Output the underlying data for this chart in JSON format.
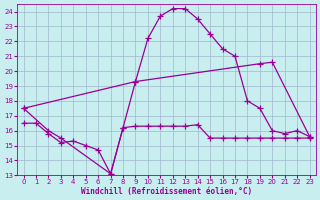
{
  "xlabel": "Windchill (Refroidissement éolien,°C)",
  "bg_color": "#c8eef0",
  "grid_color": "#a0b8cc",
  "line_color": "#990099",
  "xlim": [
    -0.5,
    23.5
  ],
  "ylim": [
    13,
    24.5
  ],
  "xticks": [
    0,
    1,
    2,
    3,
    4,
    5,
    6,
    7,
    8,
    9,
    10,
    11,
    12,
    13,
    14,
    15,
    16,
    17,
    18,
    19,
    20,
    21,
    22,
    23
  ],
  "yticks": [
    13,
    14,
    15,
    16,
    17,
    18,
    19,
    20,
    21,
    22,
    23,
    24
  ],
  "line1_x": [
    0,
    1,
    2,
    3,
    4,
    5,
    6,
    7,
    8,
    9,
    10,
    11,
    12,
    13,
    14,
    15,
    16,
    17,
    18,
    19,
    20,
    21,
    22,
    23
  ],
  "line1_y": [
    16.5,
    16.5,
    15.8,
    15.2,
    15.3,
    15.0,
    14.7,
    13.1,
    16.2,
    16.3,
    16.3,
    16.3,
    16.3,
    16.3,
    16.4,
    15.5,
    15.5,
    15.5,
    15.5,
    15.5,
    15.5,
    15.5,
    15.5,
    15.5
  ],
  "line2_x": [
    0,
    2,
    3,
    7,
    8,
    9,
    19,
    20,
    23
  ],
  "line2_y": [
    17.5,
    16.0,
    15.5,
    13.1,
    16.2,
    19.3,
    20.5,
    20.6,
    15.6
  ],
  "line3_x": [
    0,
    9,
    10,
    11,
    12,
    13,
    14,
    15,
    16,
    17,
    18,
    19,
    20,
    21,
    22,
    23
  ],
  "line3_y": [
    17.5,
    19.3,
    22.2,
    23.7,
    24.2,
    24.2,
    23.5,
    22.5,
    21.5,
    21.0,
    18.0,
    17.5,
    16.0,
    15.8,
    16.0,
    15.6
  ],
  "marker": "+",
  "markersize": 4,
  "linewidth": 0.9
}
